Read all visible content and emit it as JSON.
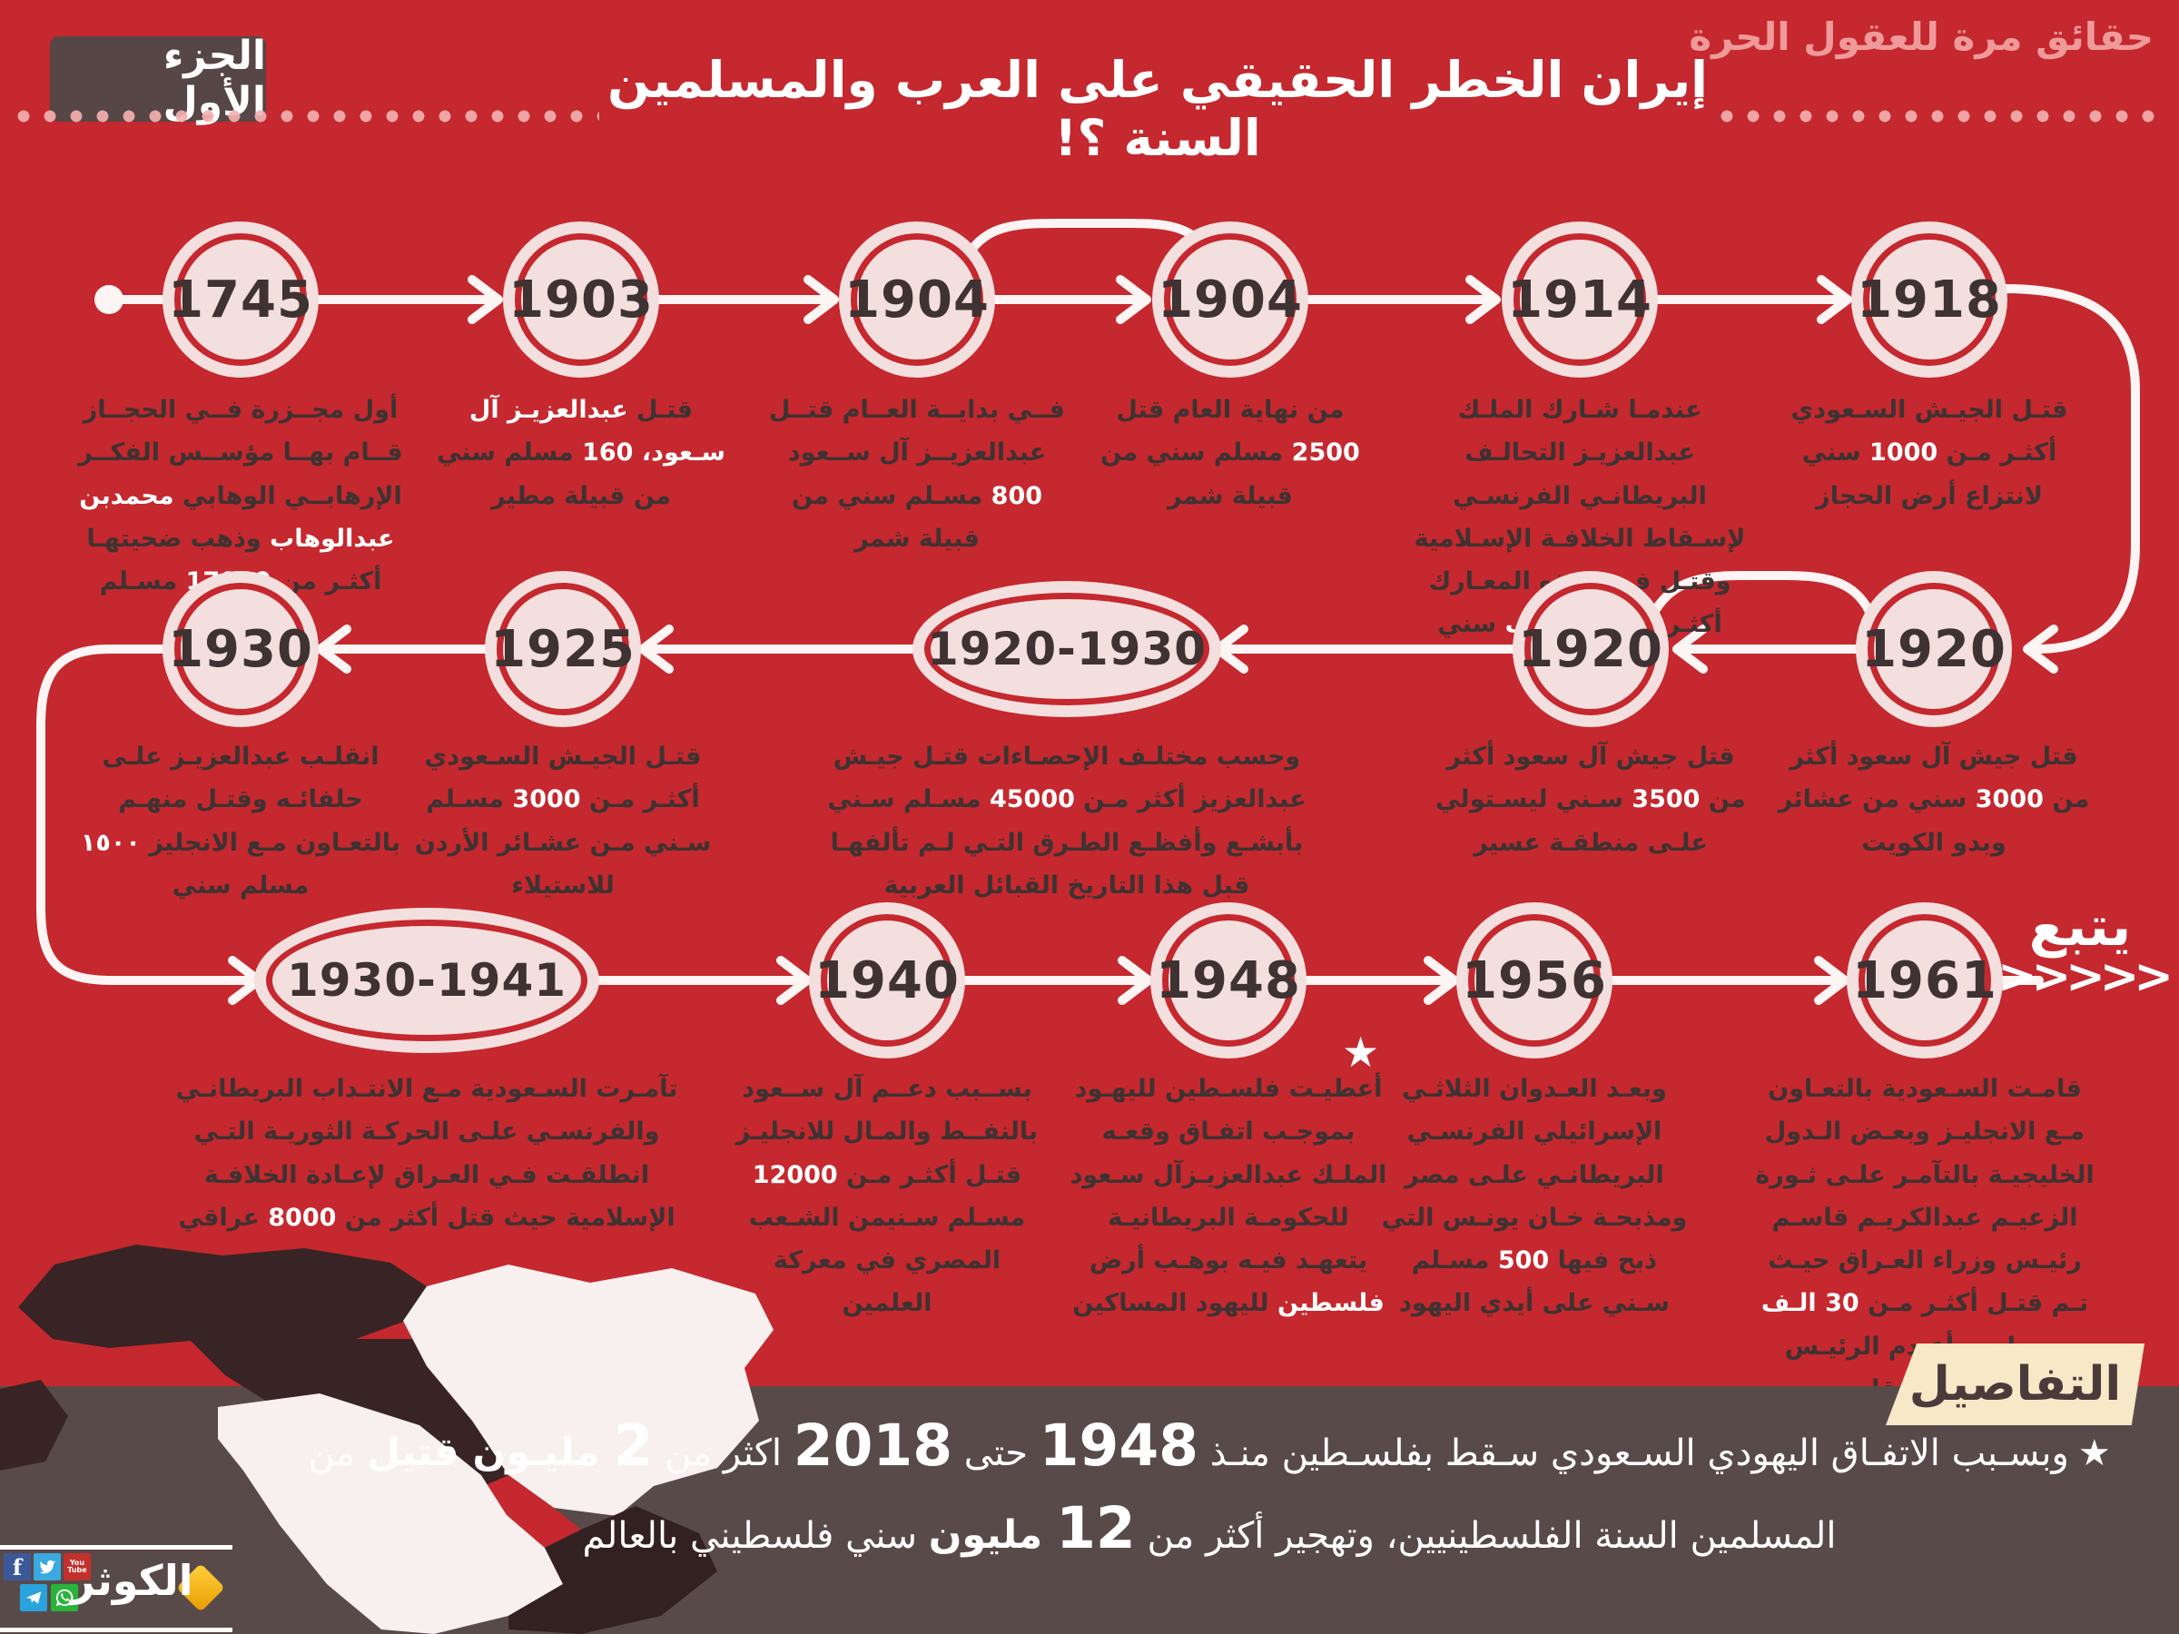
{
  "header": {
    "tagline": "حقائق مرة للعقول الحرة",
    "title": "إيران الخطر الحقيقي على العرب والمسلمين السنة ؟!",
    "part_badge": "الجزء الأول"
  },
  "timeline": {
    "continued_label": "يتبع",
    "continued_chevrons": ">>>>>",
    "star": "★",
    "events": [
      {
        "year": "1745",
        "shape": "circle",
        "segments": [
          {
            "t": "أول مجــزرة فــي الحجــاز قــام بهــا مؤســس الفكــر الإرهابــي الوهابي ",
            "hl": false
          },
          {
            "t": "محمدبن عبدالوهاب",
            "hl": true
          },
          {
            "t": " وذهب ضحيتهـا أكثـر من ",
            "hl": false
          },
          {
            "t": "17000",
            "hl": true
          },
          {
            "t": " مسـلم سني",
            "hl": false
          }
        ]
      },
      {
        "year": "1903",
        "shape": "circle",
        "segments": [
          {
            "t": "قتـل ",
            "hl": false
          },
          {
            "t": "عبدالعزيـز آل سـعود، 160",
            "hl": true
          },
          {
            "t": " مسلم سني من قبيلة مطير",
            "hl": false
          }
        ]
      },
      {
        "year": "1904",
        "shape": "circle",
        "segments": [
          {
            "t": "فــي بدايــة العــام قتــل عبدالعزيــز آل ســعود ",
            "hl": false
          },
          {
            "t": "800",
            "hl": true
          },
          {
            "t": " مسـلم سني من قبيلة شمر",
            "hl": false
          }
        ]
      },
      {
        "year": "1904",
        "shape": "circle",
        "segments": [
          {
            "t": "من نهاية العام قتل ",
            "hl": false
          },
          {
            "t": "2500",
            "hl": true
          },
          {
            "t": " مسلم سني من قبيلة شمر",
            "hl": false
          }
        ]
      },
      {
        "year": "1914",
        "shape": "circle",
        "segments": [
          {
            "t": "عندمـا شـارك الملـك عبدالعزيـز التحالـف البريطانـي الفرنسـي لإسـقاط الخلافـة الإسـلامية وقتـل فـي هـذه المعـارك أكثـر من ",
            "hl": false
          },
          {
            "t": "200 الف",
            "hl": true
          },
          {
            "t": " سني عربي",
            "hl": false
          }
        ]
      },
      {
        "year": "1918",
        "shape": "circle",
        "segments": [
          {
            "t": "قتـل الجيـش السـعودي أكثـر مـن ",
            "hl": false
          },
          {
            "t": "1000",
            "hl": true
          },
          {
            "t": " سني لانتزاع أرض الحجاز",
            "hl": false
          }
        ]
      },
      {
        "year": "1920",
        "shape": "circle",
        "segments": [
          {
            "t": "قتل جيش آل سعود أكثر من ",
            "hl": false
          },
          {
            "t": "3000",
            "hl": true
          },
          {
            "t": " سني من عشائر وبدو الكويت",
            "hl": false
          }
        ]
      },
      {
        "year": "1920",
        "shape": "circle",
        "segments": [
          {
            "t": "قتل جيش آل سعود أكثر من ",
            "hl": false
          },
          {
            "t": "3500",
            "hl": true
          },
          {
            "t": " سـني ليسـتولي علـى منطقـة عسير",
            "hl": false
          }
        ]
      },
      {
        "year": "1920-1930",
        "shape": "ellipse",
        "segments": [
          {
            "t": "وحسب مختلـف الإحصـاءات قتـل جيـش عبدالعزيز أكثر مـن ",
            "hl": false
          },
          {
            "t": "45000",
            "hl": true
          },
          {
            "t": " مسـلم سـني بأبشـع وأفظـع الطـرق التـي لـم تألفهـا قبل هذا التاريخ القبائل العربية",
            "hl": false
          }
        ]
      },
      {
        "year": "1925",
        "shape": "circle",
        "segments": [
          {
            "t": "قتـل الجيـش السـعودي أكثـر مـن ",
            "hl": false
          },
          {
            "t": "3000",
            "hl": true
          },
          {
            "t": " مسـلم سـني مـن عشـائر الأردن للاستيلاء",
            "hl": false
          }
        ]
      },
      {
        "year": "1930",
        "shape": "circle",
        "segments": [
          {
            "t": "انقلـب عبدالعزيـز علـى حلفائـه وقتـل منهـم بالتعـاون مـع الانجليز ",
            "hl": false
          },
          {
            "t": "١٥٠٠",
            "hl": true
          },
          {
            "t": " مسلم سني",
            "hl": false
          }
        ]
      },
      {
        "year": "1930-1941",
        "shape": "ellipse",
        "segments": [
          {
            "t": "تآمـرت السـعودية مـع الانتـداب البريطانـي والفرنسـي علـى الحركـة الثوريـة التـي انطلقـت فـي العـراق لإعـادة الخلافـة الإسلامية حيث قتل أكثر من ",
            "hl": false
          },
          {
            "t": "8000",
            "hl": true
          },
          {
            "t": " عراقي",
            "hl": false
          }
        ]
      },
      {
        "year": "1940",
        "shape": "circle",
        "segments": [
          {
            "t": "بســبب دعــم آل ســعود بالنفــط والمـال للانجليـز قتـل أكثـر مـن ",
            "hl": false
          },
          {
            "t": "12000",
            "hl": true
          },
          {
            "t": " مسـلم سـنيمن الشـعب المصري في معركة العلمين",
            "hl": false
          }
        ]
      },
      {
        "year": "1948",
        "shape": "circle",
        "segments": [
          {
            "t": "أعطيـت فلسـطين لليهـود بموجـب اتفـاق وقعـه الملـك عبدالعزيـزآل سـعود للحكومـة البريطانيـة يتعهـد فيـه بوهـب أرض ",
            "hl": false
          },
          {
            "t": "فلسطين",
            "hl": true
          },
          {
            "t": " لليهود المساكين",
            "hl": false
          }
        ]
      },
      {
        "year": "1956",
        "shape": "circle",
        "segments": [
          {
            "t": "وبعـد العـدوان الثلاثـي الإسرائيلي الفرنسـي البريطانـي علـى مصر ومذبحـة خـان يونـس التي ذبح فيها ",
            "hl": false
          },
          {
            "t": "500",
            "hl": true
          },
          {
            "t": " مسـلم سـني على أيدي اليهود",
            "hl": false
          }
        ]
      },
      {
        "year": "1961",
        "shape": "circle",
        "segments": [
          {
            "t": "قامـت السـعودية بالتعـاون مـع الانجليـز وبعـض الـدول الخليجيـة بالتآمـر علـى ثـورة الزعيـم عبدالكريـم قاسـم رئيـس وزراء العـراق حيـث تـم قتـل أكثـر مـن ",
            "hl": false
          },
          {
            "t": "30 الـف",
            "hl": true
          },
          {
            "t": " مسـلم، وأعـدم الرئيـس عبدالكريم قاسم",
            "hl": false
          }
        ]
      }
    ]
  },
  "details": {
    "badge": "التفاصيل",
    "star": "★",
    "lines": [
      [
        {
          "t": "وبسـبب الاتفـاق اليهودي السـعودي سـقط بفلسـطين منـذ ",
          "s": "n"
        },
        {
          "t": "1948",
          "s": "b"
        },
        {
          "t": " حتى ",
          "s": "n"
        },
        {
          "t": "2018",
          "s": "b"
        },
        {
          "t": " اكثر من ",
          "s": "n"
        },
        {
          "t": "2",
          "s": "b"
        },
        {
          "t": " مليـون قتيل",
          "s": "d"
        },
        {
          "t": " من",
          "s": "n"
        }
      ],
      [
        {
          "t": "المسلمين السنة الفلسطينيين، وتهجير أكثر من ",
          "s": "n"
        },
        {
          "t": "12",
          "s": "b"
        },
        {
          "t": " مليون",
          "s": "d"
        },
        {
          "t": " سني فلسطيني بالعالم",
          "s": "n"
        }
      ]
    ]
  },
  "footer_logo": {
    "name": "الكوثر",
    "youtube_label": "You Tube",
    "social_icons": [
      "facebook",
      "twitter",
      "youtube",
      "telegram",
      "whatsapp"
    ]
  },
  "colors": {
    "background": "#c5282e",
    "node_fill": "#f4dfdf",
    "node_ring": "#c5282e",
    "dark_text": "#3e3232",
    "light_text": "#ffffff",
    "tagline": "#ef9a9a",
    "panel": "#594a4a",
    "part_badge": "#564646",
    "details_badge": "#f7e8c8",
    "details_badge_text": "#4a3a3a",
    "logo_gold": "#f6b800",
    "map_dark": "#382424",
    "map_light": "#f8efef"
  }
}
